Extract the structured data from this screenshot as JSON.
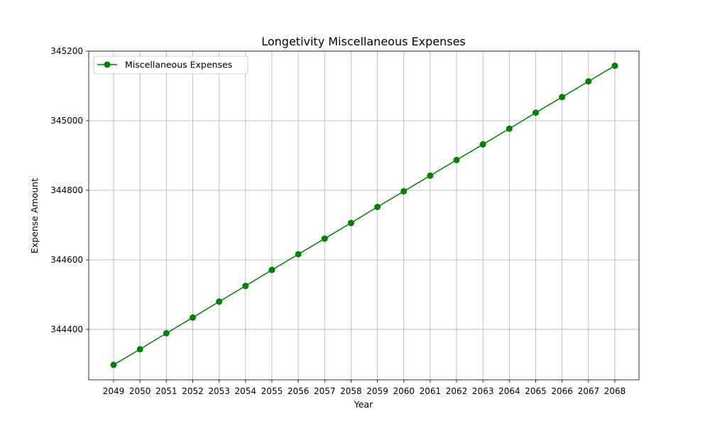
{
  "chart_data": {
    "type": "line",
    "title": "Longetivity Miscellaneous Expenses",
    "xlabel": "Year",
    "ylabel": "Expense Amount",
    "categories": [
      "2049",
      "2050",
      "2051",
      "2052",
      "2053",
      "2054",
      "2055",
      "2056",
      "2057",
      "2058",
      "2059",
      "2060",
      "2061",
      "2062",
      "2063",
      "2064",
      "2065",
      "2066",
      "2067",
      "2068"
    ],
    "series": [
      {
        "name": "Miscellaneous Expenses",
        "color": "#008000",
        "marker": "circle",
        "values": [
          344298,
          344343,
          344389,
          344434,
          344480,
          344525,
          344571,
          344616,
          344661,
          344706,
          344752,
          344797,
          344842,
          344887,
          344932,
          344977,
          345023,
          345068,
          345113,
          345158
        ]
      }
    ],
    "yticks": [
      344400,
      344600,
      344800,
      345000,
      345200
    ],
    "ylim": [
      344255,
      345200
    ],
    "grid": true,
    "legend_position": "top-left"
  }
}
